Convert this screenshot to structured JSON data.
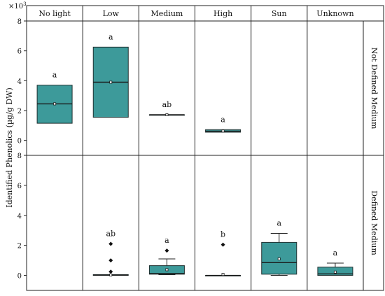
{
  "chart_data": {
    "type": "box",
    "multiplier_label": "×10³",
    "ylabel": "Identified Phenolics (µg/g DW)",
    "ylim": [
      -1,
      8
    ],
    "yticks": [
      0,
      2,
      4,
      6,
      8
    ],
    "facet_columns": [
      "No light",
      "Low",
      "Medium",
      "High",
      "Sun",
      "Unknown"
    ],
    "facet_rows": [
      "Not Defined Medium",
      "Defined Medium"
    ],
    "box_color": "#3d9a9a",
    "panels": [
      [
        {
          "q1": 1.15,
          "median": 2.45,
          "q3": 3.7,
          "mean": 2.45,
          "whisker_low": null,
          "whisker_high": null,
          "outliers": [],
          "letter": "a"
        },
        {
          "q1": 1.55,
          "median": 3.9,
          "q3": 6.25,
          "mean": 3.9,
          "whisker_low": null,
          "whisker_high": null,
          "outliers": [],
          "letter": "a"
        },
        {
          "q1": 1.72,
          "median": 1.72,
          "q3": 1.72,
          "mean": 1.72,
          "whisker_low": null,
          "whisker_high": null,
          "outliers": [],
          "letter": "ab"
        },
        {
          "q1": 0.55,
          "median": 0.62,
          "q3": 0.72,
          "mean": 0.63,
          "whisker_low": null,
          "whisker_high": null,
          "outliers": [],
          "letter": "a"
        },
        null,
        null
      ],
      [
        null,
        {
          "q1": 0.0,
          "median": 0.02,
          "q3": 0.05,
          "mean": 0.03,
          "whisker_low": null,
          "whisker_high": null,
          "outliers": [
            2.1,
            1.0,
            0.25
          ],
          "letter": "ab"
        },
        {
          "q1": 0.08,
          "median": 0.12,
          "q3": 0.65,
          "mean": 0.38,
          "whisker_low": 0.05,
          "whisker_high": 1.1,
          "outliers": [
            1.65
          ],
          "letter": "a"
        },
        {
          "q1": 0.0,
          "median": 0.0,
          "q3": 0.0,
          "mean": 0.07,
          "whisker_low": null,
          "whisker_high": null,
          "outliers": [
            2.05
          ],
          "letter": "b"
        },
        {
          "q1": 0.08,
          "median": 0.85,
          "q3": 2.2,
          "mean": 1.1,
          "whisker_low": 0.0,
          "whisker_high": 2.8,
          "outliers": [],
          "letter": "a"
        },
        {
          "q1": 0.0,
          "median": 0.1,
          "q3": 0.55,
          "mean": 0.22,
          "whisker_low": 0.0,
          "whisker_high": 0.82,
          "outliers": [],
          "letter": "a"
        }
      ]
    ]
  }
}
